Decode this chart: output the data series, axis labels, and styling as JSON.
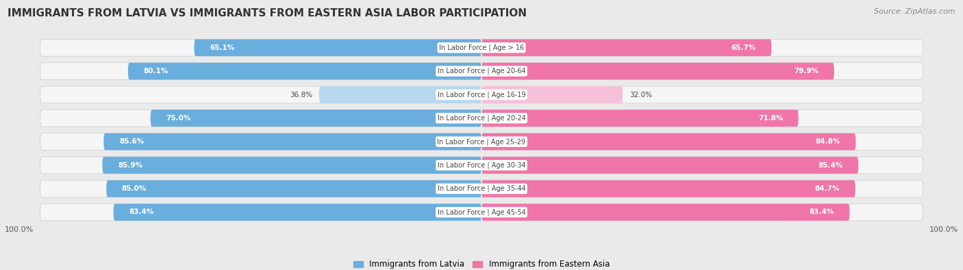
{
  "title": "IMMIGRANTS FROM LATVIA VS IMMIGRANTS FROM EASTERN ASIA LABOR PARTICIPATION",
  "source": "Source: ZipAtlas.com",
  "categories": [
    "In Labor Force | Age > 16",
    "In Labor Force | Age 20-64",
    "In Labor Force | Age 16-19",
    "In Labor Force | Age 20-24",
    "In Labor Force | Age 25-29",
    "In Labor Force | Age 30-34",
    "In Labor Force | Age 35-44",
    "In Labor Force | Age 45-54"
  ],
  "latvia_values": [
    65.1,
    80.1,
    36.8,
    75.0,
    85.6,
    85.9,
    85.0,
    83.4
  ],
  "eastern_asia_values": [
    65.7,
    79.9,
    32.0,
    71.8,
    84.8,
    85.4,
    84.7,
    83.4
  ],
  "latvia_color": "#6AAEDE",
  "latvia_color_light": "#B8D8F0",
  "eastern_asia_color": "#F075A8",
  "eastern_asia_color_light": "#F5C0D8",
  "label_latvia": "Immigrants from Latvia",
  "label_eastern_asia": "Immigrants from Eastern Asia",
  "max_value": 100.0,
  "bg_color": "#EAEAEA",
  "row_bg_color": "#F5F5F5",
  "title_fontsize": 11,
  "bar_height": 0.72,
  "x_axis_label_left": "100.0%",
  "x_axis_label_right": "100.0%"
}
